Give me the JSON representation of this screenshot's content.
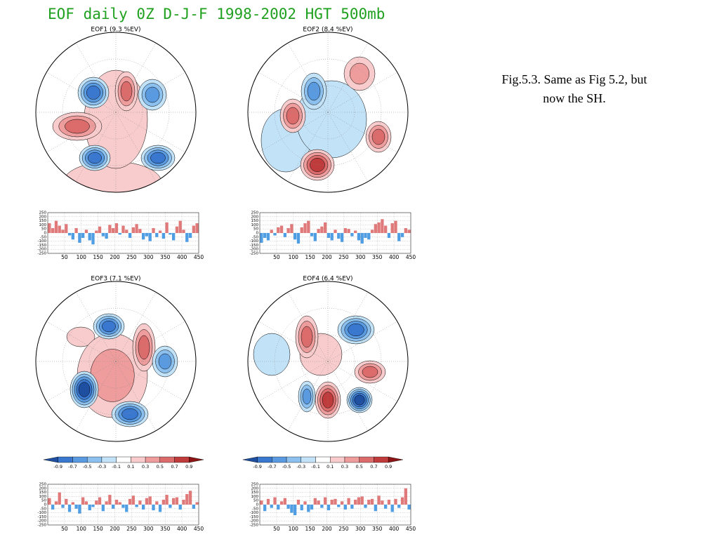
{
  "title": "EOF daily 0Z D-J-F 1998-2002 HGT 500mb",
  "caption": [
    "Fig.5.3. Same as Fig 5.2, but",
    "now the SH."
  ],
  "colorbar": {
    "ticks": [
      -0.9,
      -0.7,
      -0.5,
      -0.3,
      -0.1,
      0.1,
      0.3,
      0.5,
      0.7,
      0.9
    ],
    "colors": [
      "#1f4fa0",
      "#3a78d0",
      "#5a9ae0",
      "#8cc0ee",
      "#c2e2f8",
      "#ffffff",
      "#f8cccc",
      "#ee9c9c",
      "#dc6c6c",
      "#c03c3c",
      "#8c1414"
    ]
  },
  "chart_data": [
    {
      "type": "bar",
      "title": "EOF1 (9.3 %EV)",
      "positive_color": "#e07a7a",
      "negative_color": "#4f9de2",
      "x": [
        5,
        15,
        25,
        35,
        45,
        55,
        65,
        75,
        85,
        95,
        105,
        115,
        125,
        135,
        145,
        155,
        165,
        175,
        185,
        195,
        205,
        215,
        225,
        235,
        245,
        255,
        265,
        275,
        285,
        295,
        305,
        315,
        325,
        335,
        345,
        355,
        365,
        375,
        385,
        395,
        405,
        415,
        425,
        435,
        445
      ],
      "values": [
        120,
        60,
        150,
        90,
        40,
        110,
        -30,
        -80,
        60,
        -120,
        -60,
        40,
        -90,
        -140,
        30,
        80,
        -40,
        -70,
        100,
        60,
        120,
        -20,
        90,
        40,
        -60,
        70,
        110,
        50,
        -80,
        -40,
        -100,
        60,
        -50,
        30,
        -70,
        130,
        -20,
        -90,
        80,
        150,
        40,
        -110,
        -60,
        90,
        120
      ],
      "xlim": [
        0,
        450
      ],
      "ylim": [
        -250,
        250
      ],
      "xticks": [
        50,
        100,
        150,
        200,
        250,
        300,
        350,
        400,
        450
      ],
      "yticks": [
        -250,
        -200,
        -150,
        -100,
        -50,
        0,
        50,
        100,
        150,
        200,
        250
      ]
    },
    {
      "type": "bar",
      "title": "EOF2 (8.4 %EV)",
      "positive_color": "#e07a7a",
      "negative_color": "#4f9de2",
      "x": [
        5,
        15,
        25,
        35,
        45,
        55,
        65,
        75,
        85,
        95,
        105,
        115,
        125,
        135,
        145,
        155,
        165,
        175,
        185,
        195,
        205,
        215,
        225,
        235,
        245,
        255,
        265,
        275,
        285,
        295,
        305,
        315,
        325,
        335,
        345,
        355,
        365,
        375,
        385,
        395,
        405,
        415,
        425,
        435,
        445
      ],
      "values": [
        -120,
        -60,
        -90,
        40,
        -30,
        70,
        90,
        -50,
        60,
        110,
        -80,
        -130,
        70,
        120,
        150,
        -40,
        -100,
        50,
        80,
        130,
        -60,
        -90,
        40,
        -70,
        -110,
        60,
        50,
        -40,
        30,
        -90,
        -130,
        -60,
        -80,
        40,
        110,
        130,
        170,
        90,
        -60,
        120,
        150,
        -100,
        -50,
        60,
        40
      ],
      "xlim": [
        0,
        450
      ],
      "ylim": [
        -250,
        250
      ],
      "xticks": [
        50,
        100,
        150,
        200,
        250,
        300,
        350,
        400,
        450
      ],
      "yticks": [
        -250,
        -200,
        -150,
        -100,
        -50,
        0,
        50,
        100,
        150,
        200,
        250
      ]
    },
    {
      "type": "bar",
      "title": "EOF3 (7.1 %EV)",
      "positive_color": "#e07a7a",
      "negative_color": "#4f9de2",
      "x": [
        5,
        15,
        25,
        35,
        45,
        55,
        65,
        75,
        85,
        95,
        105,
        115,
        125,
        135,
        145,
        155,
        165,
        175,
        185,
        195,
        205,
        215,
        225,
        235,
        245,
        255,
        265,
        275,
        285,
        295,
        305,
        315,
        325,
        335,
        345,
        355,
        365,
        375,
        385,
        395,
        405,
        415,
        425,
        435,
        445
      ],
      "values": [
        80,
        -60,
        40,
        150,
        -40,
        70,
        -90,
        30,
        -50,
        -110,
        90,
        40,
        -70,
        -30,
        50,
        90,
        -80,
        40,
        120,
        -50,
        60,
        30,
        -40,
        -90,
        70,
        110,
        -30,
        50,
        -60,
        80,
        100,
        -70,
        40,
        -90,
        60,
        120,
        -40,
        80,
        90,
        -60,
        60,
        130,
        170,
        -50,
        30
      ],
      "xlim": [
        0,
        450
      ],
      "ylim": [
        -250,
        250
      ],
      "xticks": [
        50,
        100,
        150,
        200,
        250,
        300,
        350,
        400,
        450
      ],
      "yticks": [
        -250,
        -200,
        -150,
        -100,
        -50,
        0,
        50,
        100,
        150,
        200,
        250
      ]
    },
    {
      "type": "bar",
      "title": "EOF4 (6.4 %EV)",
      "positive_color": "#e07a7a",
      "negative_color": "#4f9de2",
      "x": [
        5,
        15,
        25,
        35,
        45,
        55,
        65,
        75,
        85,
        95,
        105,
        115,
        125,
        135,
        145,
        155,
        165,
        175,
        185,
        195,
        205,
        215,
        225,
        235,
        245,
        255,
        265,
        275,
        285,
        295,
        305,
        315,
        325,
        335,
        345,
        355,
        365,
        375,
        385,
        395,
        405,
        415,
        425,
        435,
        445
      ],
      "values": [
        50,
        -80,
        70,
        -40,
        90,
        -60,
        40,
        80,
        -50,
        -100,
        -130,
        60,
        -70,
        40,
        -90,
        -60,
        80,
        50,
        -40,
        90,
        -70,
        60,
        70,
        -30,
        40,
        -60,
        80,
        -50,
        60,
        90,
        100,
        -40,
        60,
        70,
        -80,
        110,
        50,
        -50,
        60,
        -90,
        70,
        -40,
        90,
        200,
        -60
      ],
      "xlim": [
        0,
        450
      ],
      "ylim": [
        -250,
        250
      ],
      "xticks": [
        50,
        100,
        150,
        200,
        250,
        300,
        350,
        400,
        450
      ],
      "yticks": [
        -250,
        -200,
        -150,
        -100,
        -50,
        0,
        50,
        100,
        150,
        200,
        250
      ]
    }
  ]
}
